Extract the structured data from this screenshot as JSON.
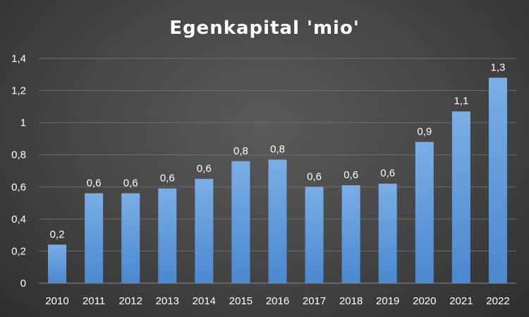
{
  "chart_data": {
    "type": "bar",
    "title": "Egenkapital 'mio'",
    "xlabel": "",
    "ylabel": "",
    "categories": [
      "2010",
      "2011",
      "2012",
      "2013",
      "2014",
      "2015",
      "2016",
      "2017",
      "2018",
      "2019",
      "2020",
      "2021",
      "2022"
    ],
    "values": [
      0.24,
      0.56,
      0.56,
      0.59,
      0.65,
      0.76,
      0.77,
      0.6,
      0.61,
      0.62,
      0.88,
      1.07,
      1.28
    ],
    "data_labels": [
      "0,2",
      "0,6",
      "0,6",
      "0,6",
      "0,6",
      "0,8",
      "0,8",
      "0,6",
      "0,6",
      "0,6",
      "0,9",
      "1,1",
      "1,3"
    ],
    "ylim": [
      0,
      1.4
    ],
    "yticks": [
      0,
      0.2,
      0.4,
      0.6,
      0.8,
      1,
      1.2,
      1.4
    ],
    "ytick_labels": [
      "0",
      "0,2",
      "0,4",
      "0,6",
      "0,8",
      "1",
      "1,2",
      "1,4"
    ],
    "grid": true,
    "legend": "none",
    "colors": {
      "bar_top": "#7aaee6",
      "bar_bottom": "#4a88cf",
      "background": "#444444",
      "text": "#ffffff",
      "grid": "#6e6e6e"
    }
  }
}
